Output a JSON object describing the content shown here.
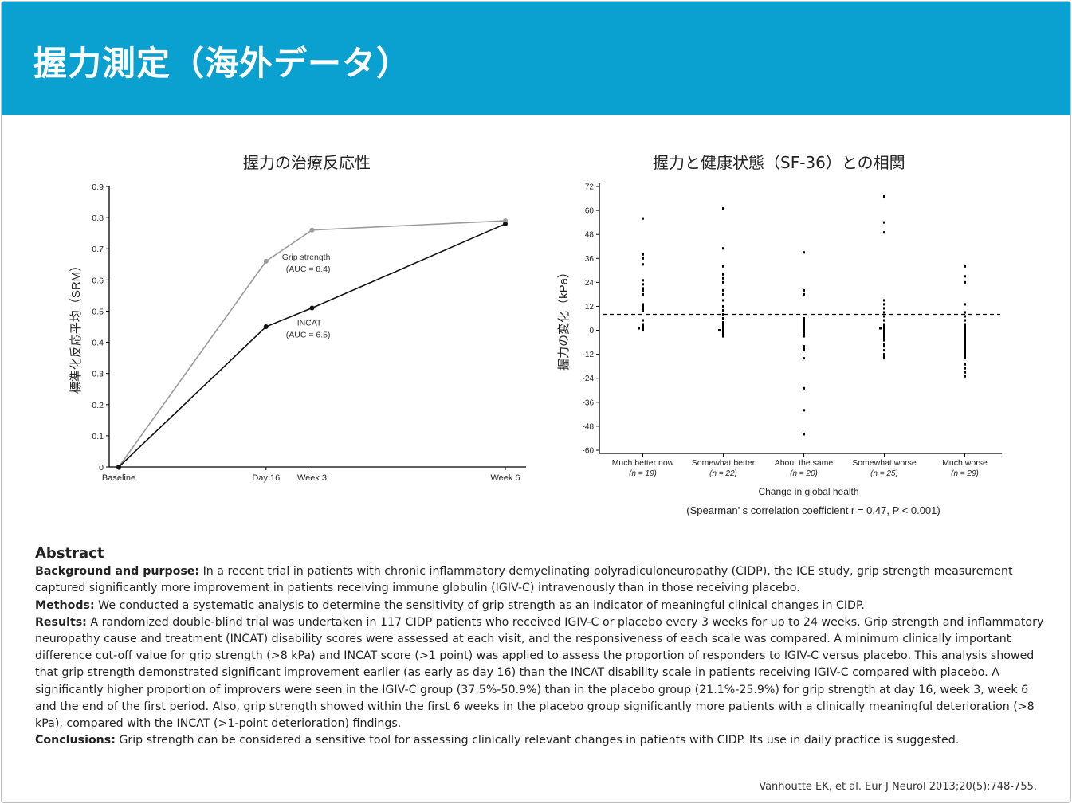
{
  "header": {
    "title": "握力測定（海外データ）"
  },
  "chart_data": [
    {
      "type": "line",
      "title": "握力の治療反応性",
      "ylabel": "標準化反応平均（SRM）",
      "xlabel": "",
      "categories": [
        "Baseline",
        "Day 16",
        "Week 3",
        "Week 6"
      ],
      "x_days": [
        0,
        16,
        21,
        42
      ],
      "ylim": [
        0,
        0.9
      ],
      "yticks": [
        "0",
        "0.1",
        "0.2",
        "0.3",
        "0.4",
        "0.5",
        "0.6",
        "0.7",
        "0.8",
        "0.9"
      ],
      "series": [
        {
          "name": "Grip strength",
          "annotation": "(AUC = 8.4)",
          "values": [
            0,
            0.66,
            0.76,
            0.79
          ],
          "color": "#9a9a9a"
        },
        {
          "name": "INCAT",
          "annotation": "(AUC = 6.5)",
          "values": [
            0,
            0.45,
            0.51,
            0.78
          ],
          "color": "#111111"
        }
      ],
      "grid": false
    },
    {
      "type": "scatter",
      "title": "握力と健康状態（SF-36）との相関",
      "ylabel": "握力の変化（kPa）",
      "xlabel": "Change in global health",
      "ylim": [
        -60,
        72
      ],
      "yticks": [
        "72",
        "60",
        "48",
        "36",
        "24",
        "12",
        "0",
        "-12",
        "-24",
        "-36",
        "-48",
        "-60"
      ],
      "reference_line": 8,
      "categories": [
        {
          "label": "Much better now",
          "n": "(n = 19)",
          "values": [
            56,
            38,
            36,
            33,
            25,
            23,
            21,
            20,
            18,
            13,
            12,
            11,
            10,
            5,
            3,
            2,
            1,
            0,
            1
          ]
        },
        {
          "label": "Somewhat better",
          "n": "(n = 22)",
          "values": [
            61,
            41,
            32,
            28,
            26,
            24,
            20,
            18,
            15,
            12,
            10,
            8,
            6,
            4,
            3,
            2,
            1,
            0,
            -1,
            -2,
            -3,
            0
          ]
        },
        {
          "label": "About the same",
          "n": "(n = 20)",
          "values": [
            39,
            20,
            18,
            6,
            4,
            3,
            2,
            1,
            0,
            -1,
            -2,
            -3,
            -8,
            -9,
            -10,
            -14,
            -29,
            -40,
            -52,
            5
          ]
        },
        {
          "label": "Somewhat worse",
          "n": "(n = 25)",
          "values": [
            67,
            54,
            49,
            15,
            13,
            11,
            9,
            7,
            5,
            3,
            2,
            1,
            0,
            -1,
            -2,
            -3,
            -4,
            -5,
            -7,
            -8,
            -10,
            -12,
            -13,
            -14,
            1
          ]
        },
        {
          "label": "Much worse",
          "n": "(n = 29)",
          "values": [
            32,
            27,
            24,
            13,
            9,
            7,
            5,
            3,
            2,
            1,
            0,
            -1,
            -2,
            -3,
            -4,
            -5,
            -6,
            -7,
            -8,
            -9,
            -10,
            -11,
            -12,
            -13,
            -14,
            -17,
            -21,
            -23,
            -19
          ]
        }
      ],
      "footnote": "(Spearman’ s correlation coefficient r = 0.47, P < 0.001)"
    }
  ],
  "abstract": {
    "heading": "Abstract",
    "background_label": "Background and purpose:",
    "background_text": " In a recent trial in patients with chronic inflammatory demyelinating polyradiculoneuropathy (CIDP), the ICE study, grip strength measurement captured significantly more improvement in patients receiving immune globulin (IGIV-C) intravenously than in those receiving placebo.",
    "methods_label": "Methods:",
    "methods_text": " We conducted a systematic analysis to determine the sensitivity of grip strength as an indicator of meaningful clinical changes in CIDP.",
    "results_label": "Results:",
    "results_text": " A randomized double-blind trial was undertaken in 117 CIDP patients who received IGIV-C or placebo every 3 weeks for up to 24 weeks. Grip strength and inflammatory neuropathy cause and treatment (INCAT) disability scores were assessed at each visit, and the responsiveness of each scale was compared. A minimum clinically important difference cut-off value for grip strength (>8 kPa) and INCAT score (>1 point) was applied to assess the proportion of responders to IGIV-C versus placebo. This analysis showed that grip strength demonstrated significant improvement earlier (as early as day 16) than the INCAT disability scale in patients receiving IGIV-C compared with placebo. A significantly higher proportion of improvers were seen in the IGIV-C group (37.5%-50.9%) than in the placebo group (21.1%-25.9%) for grip strength at day 16, week 3, week 6 and the end of the first period. Also, grip strength showed within the first 6 weeks in the placebo group significantly more patients with a clinically meaningful deterioration (>8 kPa), compared with the INCAT (>1-point deterioration) findings.",
    "conclusions_label": "Conclusions:",
    "conclusions_text": " Grip strength can be considered a sensitive tool for assessing clinically relevant changes in patients with CIDP. Its use in daily practice is suggested."
  },
  "citation": "Vanhoutte EK, et al. Eur J Neurol 2013;20(5):748-755."
}
